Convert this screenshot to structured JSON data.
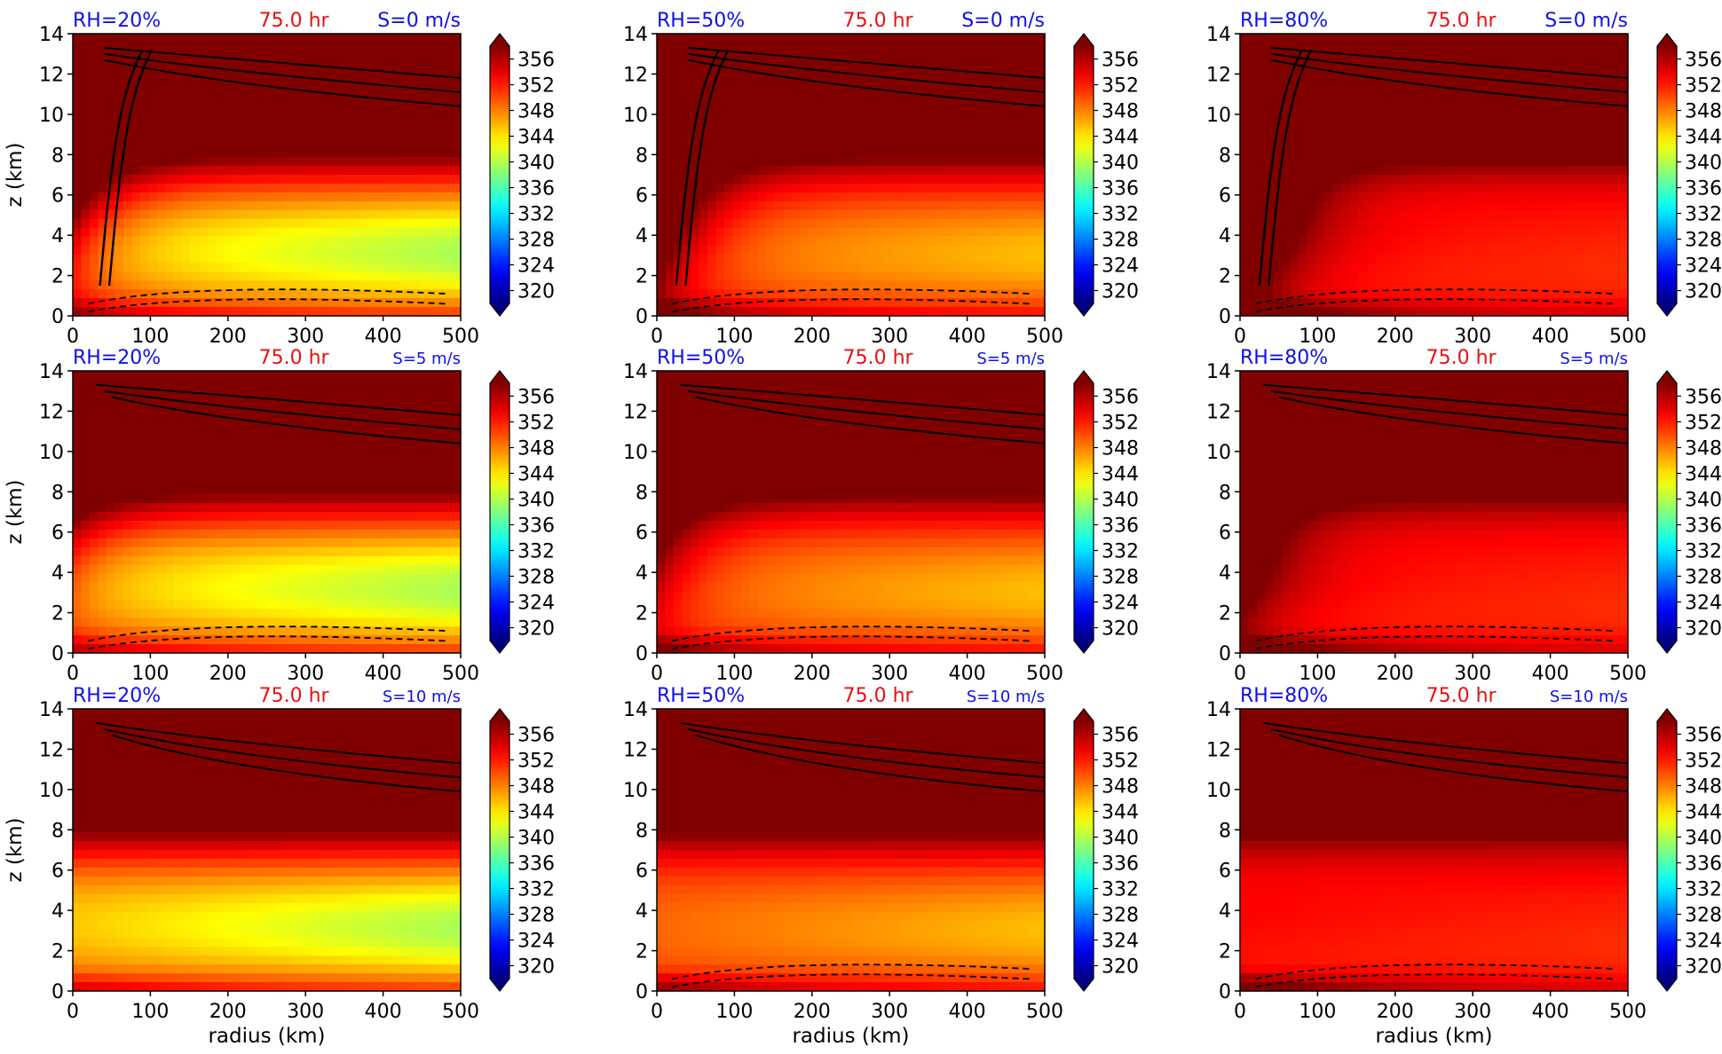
{
  "chart_data": {
    "type": "heatmap",
    "colors": {
      "label_blue": "#1010e8",
      "label_red": "#e81010"
    },
    "colormap": "jet",
    "contours": "black solid and dashed contour overlays",
    "shared_time": "75.0 hr",
    "xlabel": "radius (km)",
    "ylabel": "z (km)",
    "x_ticks": [
      "0",
      "100",
      "200",
      "300",
      "400",
      "500"
    ],
    "y_ticks": [
      "0",
      "2",
      "4",
      "6",
      "8",
      "10",
      "12",
      "14"
    ],
    "xlim": [
      0,
      500
    ],
    "ylim": [
      0,
      14
    ],
    "colorbar": {
      "ticks": [
        "320",
        "324",
        "328",
        "332",
        "336",
        "340",
        "344",
        "348",
        "352",
        "356"
      ],
      "range": [
        318,
        358
      ],
      "extend": "both"
    },
    "panels": [
      {
        "rh_label": "RH=20%",
        "time_label": "75.0 hr",
        "shear_label": "S=0 m/s",
        "rh": 20,
        "shear": 0
      },
      {
        "rh_label": "RH=50%",
        "time_label": "75.0 hr",
        "shear_label": "S=0 m/s",
        "rh": 50,
        "shear": 0
      },
      {
        "rh_label": "RH=80%",
        "time_label": "75.0 hr",
        "shear_label": "S=0 m/s",
        "rh": 80,
        "shear": 0
      },
      {
        "rh_label": "RH=20%",
        "time_label": "75.0 hr",
        "shear_label": "S=5 m/s",
        "rh": 20,
        "shear": 5
      },
      {
        "rh_label": "RH=50%",
        "time_label": "75.0 hr",
        "shear_label": "S=5 m/s",
        "rh": 50,
        "shear": 5
      },
      {
        "rh_label": "RH=80%",
        "time_label": "75.0 hr",
        "shear_label": "S=5 m/s",
        "rh": 80,
        "shear": 5
      },
      {
        "rh_label": "RH=20%",
        "time_label": "75.0 hr",
        "shear_label": "S=10 m/s",
        "rh": 20,
        "shear": 10
      },
      {
        "rh_label": "RH=50%",
        "time_label": "75.0 hr",
        "shear_label": "S=10 m/s",
        "rh": 50,
        "shear": 10
      },
      {
        "rh_label": "RH=80%",
        "time_label": "75.0 hr",
        "shear_label": "S=10 m/s",
        "rh": 80,
        "shear": 10
      }
    ]
  }
}
